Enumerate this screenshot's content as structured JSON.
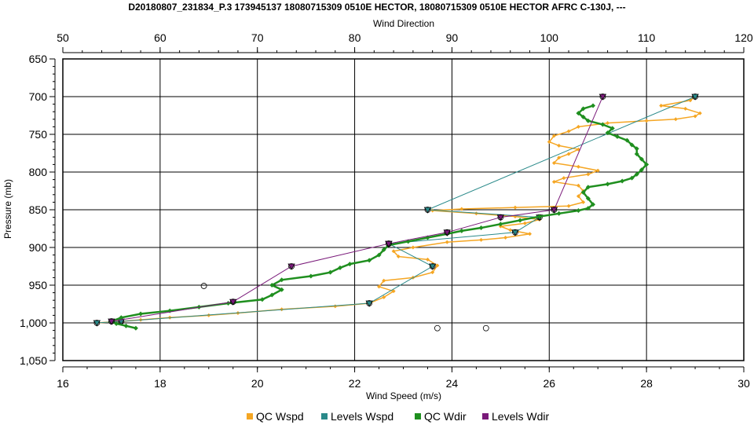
{
  "chart_data": {
    "type": "line",
    "title": "D20180807_231834_P.3 173945137 18080715309 0510E HECTOR, 18080715309 0510E HECTOR AFRC C-130J, ---",
    "xlabel": "Wind Speed (m/s)",
    "x2label": "Wind Direction",
    "ylabel": "Pressure (mb)",
    "xlim": [
      16,
      30
    ],
    "x2lim": [
      50,
      120
    ],
    "ylim": [
      650,
      1050
    ],
    "y_inverted": true,
    "grid": true,
    "legend_position": "bottom",
    "xticks": [
      "16",
      "18",
      "20",
      "22",
      "24",
      "26",
      "28",
      "30"
    ],
    "x2ticks": [
      "50",
      "60",
      "70",
      "80",
      "90",
      "100",
      "110",
      "120"
    ],
    "yticks": [
      "650",
      "700",
      "750",
      "800",
      "850",
      "900",
      "950",
      "1,000",
      "1,050"
    ],
    "series": [
      {
        "name": "QC Wspd",
        "axis": "bottom",
        "color": "#f5a623",
        "marker": "diamond",
        "points": [
          [
            16.7,
            1000
          ],
          [
            17.2,
            998
          ],
          [
            17.6,
            996
          ],
          [
            18.2,
            993
          ],
          [
            19.0,
            990
          ],
          [
            19.6,
            987
          ],
          [
            20.5,
            982
          ],
          [
            21.6,
            978
          ],
          [
            22.3,
            974
          ],
          [
            22.6,
            966
          ],
          [
            22.8,
            958
          ],
          [
            22.5,
            952
          ],
          [
            22.6,
            944
          ],
          [
            23.2,
            940
          ],
          [
            23.6,
            933
          ],
          [
            23.7,
            924
          ],
          [
            23.5,
            916
          ],
          [
            22.9,
            912
          ],
          [
            22.8,
            905
          ],
          [
            23.2,
            900
          ],
          [
            23.9,
            893
          ],
          [
            24.6,
            890
          ],
          [
            25.1,
            887
          ],
          [
            25.6,
            882
          ],
          [
            25.2,
            877
          ],
          [
            25.0,
            872
          ],
          [
            25.5,
            868
          ],
          [
            25.8,
            863
          ],
          [
            25.3,
            859
          ],
          [
            24.5,
            855
          ],
          [
            23.6,
            851
          ],
          [
            24.2,
            849
          ],
          [
            25.3,
            847
          ],
          [
            26.4,
            845
          ],
          [
            26.7,
            840
          ],
          [
            26.6,
            832
          ],
          [
            26.7,
            825
          ],
          [
            26.6,
            818
          ],
          [
            26.1,
            813
          ],
          [
            26.3,
            808
          ],
          [
            26.8,
            803
          ],
          [
            27.0,
            798
          ],
          [
            26.6,
            793
          ],
          [
            26.1,
            788
          ],
          [
            26.2,
            781
          ],
          [
            26.4,
            776
          ],
          [
            26.6,
            770
          ],
          [
            26.2,
            765
          ],
          [
            26.0,
            760
          ],
          [
            26.1,
            752
          ],
          [
            26.4,
            746
          ],
          [
            26.6,
            740
          ],
          [
            27.2,
            735
          ],
          [
            28.0,
            732
          ],
          [
            28.6,
            730
          ],
          [
            29.0,
            726
          ],
          [
            29.1,
            722
          ],
          [
            28.8,
            716
          ],
          [
            28.3,
            712
          ],
          [
            28.9,
            705
          ],
          [
            29.0,
            700
          ]
        ]
      },
      {
        "name": "Levels Wspd",
        "axis": "bottom",
        "color": "#2a8a8a",
        "marker": "triangle-down",
        "points": [
          [
            16.7,
            1000
          ],
          [
            17.2,
            998
          ],
          [
            22.3,
            974
          ],
          [
            23.6,
            925
          ],
          [
            22.7,
            895
          ],
          [
            25.3,
            880
          ],
          [
            25.8,
            860
          ],
          [
            23.5,
            850
          ],
          [
            29.0,
            700
          ]
        ]
      },
      {
        "name": "QC Wdir",
        "axis": "top",
        "color": "#1f8f1f",
        "marker": "diamond",
        "points": [
          [
            57.5,
            1007
          ],
          [
            56.5,
            1004
          ],
          [
            55.5,
            1001
          ],
          [
            55.0,
            998
          ],
          [
            56.0,
            993
          ],
          [
            58.0,
            988
          ],
          [
            61.0,
            984
          ],
          [
            64.0,
            979
          ],
          [
            67.0,
            974
          ],
          [
            70.5,
            969
          ],
          [
            71.5,
            963
          ],
          [
            72.5,
            956
          ],
          [
            71.5,
            950
          ],
          [
            72.5,
            943
          ],
          [
            75.5,
            938
          ],
          [
            77.5,
            933
          ],
          [
            78.5,
            927
          ],
          [
            79.5,
            922
          ],
          [
            81.5,
            917
          ],
          [
            82.5,
            910
          ],
          [
            83.0,
            903
          ],
          [
            83.5,
            897
          ],
          [
            85.5,
            892
          ],
          [
            87.5,
            887
          ],
          [
            89.5,
            882
          ],
          [
            91.0,
            878
          ],
          [
            93.0,
            874
          ],
          [
            95.0,
            869
          ],
          [
            97.0,
            864
          ],
          [
            99.0,
            859
          ],
          [
            101.0,
            855
          ],
          [
            103.0,
            851
          ],
          [
            104.0,
            848
          ],
          [
            104.5,
            843
          ],
          [
            104.0,
            835
          ],
          [
            103.5,
            827
          ],
          [
            104.0,
            820
          ],
          [
            106.0,
            816
          ],
          [
            107.5,
            812
          ],
          [
            108.5,
            808
          ],
          [
            109.0,
            803
          ],
          [
            109.5,
            797
          ],
          [
            110.0,
            790
          ],
          [
            109.5,
            783
          ],
          [
            109.0,
            776
          ],
          [
            109.0,
            769
          ],
          [
            108.5,
            764
          ],
          [
            108.0,
            758
          ],
          [
            107.0,
            753
          ],
          [
            106.0,
            748
          ],
          [
            106.5,
            742
          ],
          [
            105.5,
            737
          ],
          [
            104.0,
            732
          ],
          [
            103.5,
            727
          ],
          [
            103.0,
            722
          ],
          [
            103.5,
            716
          ],
          [
            104.5,
            712
          ]
        ]
      },
      {
        "name": "Levels Wdir",
        "axis": "top",
        "color": "#7a1a7a",
        "marker": "triangle-down",
        "points": [
          [
            55.0,
            998
          ],
          [
            67.5,
            972
          ],
          [
            73.5,
            925
          ],
          [
            83.5,
            895
          ],
          [
            89.5,
            880
          ],
          [
            95.0,
            860
          ],
          [
            100.5,
            850
          ],
          [
            105.5,
            700
          ]
        ]
      }
    ],
    "outliers_wspd": [
      [
        18.9,
        951
      ],
      [
        23.7,
        1007
      ],
      [
        24.7,
        1007
      ]
    ]
  }
}
